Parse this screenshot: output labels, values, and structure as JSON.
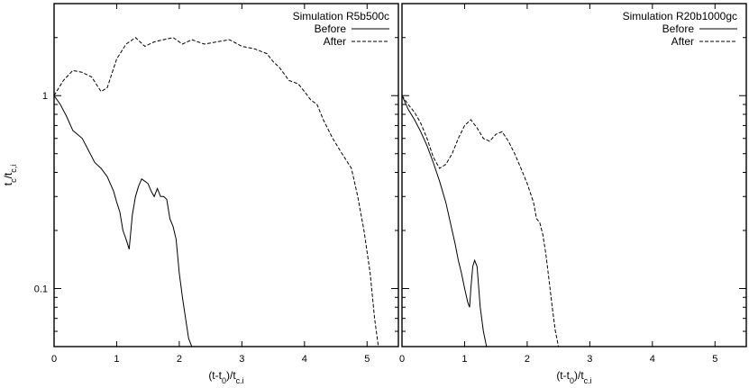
{
  "chart_data": [
    {
      "type": "line",
      "title": "",
      "xlabel": "(t-t0)/tc,i",
      "ylabel": "tc/tc,i",
      "xlim": [
        0,
        5.5
      ],
      "ylim": [
        0.05,
        3
      ],
      "yscale": "log",
      "x_ticks": [
        "0",
        "1",
        "2",
        "3",
        "4",
        "5"
      ],
      "y_ticks": [
        "0.1",
        "1"
      ],
      "legend": {
        "title": "Simulation R5b500c",
        "placement": "top-right",
        "entries": [
          "Before",
          "After"
        ]
      },
      "series": [
        {
          "name": "Before",
          "style": "solid",
          "x": [
            0,
            0.1,
            0.2,
            0.3,
            0.45,
            0.55,
            0.65,
            0.75,
            0.85,
            0.95,
            1.0,
            1.05,
            1.1,
            1.15,
            1.2,
            1.25,
            1.3,
            1.35,
            1.4,
            1.45,
            1.5,
            1.55,
            1.6,
            1.65,
            1.7,
            1.75,
            1.8,
            1.85,
            1.9,
            1.95,
            2.0,
            2.05,
            2.1,
            2.15,
            2.2
          ],
          "y": [
            1.0,
            0.9,
            0.78,
            0.66,
            0.6,
            0.52,
            0.45,
            0.42,
            0.38,
            0.32,
            0.28,
            0.25,
            0.2,
            0.18,
            0.16,
            0.24,
            0.3,
            0.34,
            0.37,
            0.36,
            0.35,
            0.32,
            0.3,
            0.33,
            0.3,
            0.3,
            0.29,
            0.23,
            0.21,
            0.18,
            0.12,
            0.09,
            0.07,
            0.055,
            0.05
          ]
        },
        {
          "name": "After",
          "style": "dashed",
          "x": [
            0,
            0.15,
            0.3,
            0.45,
            0.6,
            0.75,
            0.85,
            1.0,
            1.15,
            1.3,
            1.45,
            1.6,
            1.75,
            1.9,
            2.05,
            2.2,
            2.4,
            2.6,
            2.8,
            3.0,
            3.2,
            3.4,
            3.5,
            3.6,
            3.75,
            3.9,
            4.0,
            4.1,
            4.2,
            4.3,
            4.45,
            4.6,
            4.75,
            4.85,
            4.95,
            5.05,
            5.12,
            5.18
          ],
          "y": [
            1.0,
            1.2,
            1.35,
            1.32,
            1.25,
            1.05,
            1.1,
            1.55,
            1.85,
            2.0,
            1.8,
            1.9,
            1.95,
            2.0,
            1.85,
            1.95,
            1.85,
            1.9,
            1.95,
            1.8,
            1.75,
            1.65,
            1.5,
            1.4,
            1.2,
            1.15,
            1.05,
            0.95,
            0.9,
            0.75,
            0.6,
            0.5,
            0.42,
            0.3,
            0.2,
            0.12,
            0.07,
            0.05
          ]
        }
      ]
    },
    {
      "type": "line",
      "title": "",
      "xlabel": "(t-t0)/tc,i",
      "ylabel": "",
      "xlim": [
        0,
        5.5
      ],
      "ylim": [
        0.05,
        3
      ],
      "yscale": "log",
      "x_ticks": [
        "0",
        "1",
        "2",
        "3",
        "4",
        "5"
      ],
      "y_ticks": [],
      "legend": {
        "title": "Simulation R20b1000gc",
        "placement": "top-right",
        "entries": [
          "Before",
          "After"
        ]
      },
      "series": [
        {
          "name": "Before",
          "style": "solid",
          "x": [
            0,
            0.1,
            0.2,
            0.3,
            0.4,
            0.5,
            0.6,
            0.7,
            0.8,
            0.85,
            0.9,
            0.95,
            1.0,
            1.05,
            1.08,
            1.1,
            1.13,
            1.16,
            1.2,
            1.25,
            1.3,
            1.35
          ],
          "y": [
            1.0,
            0.85,
            0.75,
            0.65,
            0.55,
            0.45,
            0.36,
            0.28,
            0.2,
            0.17,
            0.14,
            0.12,
            0.1,
            0.085,
            0.08,
            0.1,
            0.13,
            0.14,
            0.13,
            0.08,
            0.06,
            0.05
          ]
        },
        {
          "name": "After",
          "style": "dashed",
          "x": [
            0,
            0.1,
            0.2,
            0.3,
            0.4,
            0.5,
            0.6,
            0.7,
            0.8,
            0.9,
            1.0,
            1.1,
            1.2,
            1.3,
            1.4,
            1.5,
            1.6,
            1.7,
            1.8,
            1.9,
            2.0,
            2.1,
            2.15,
            2.2,
            2.25,
            2.3,
            2.35,
            2.4,
            2.45,
            2.5
          ],
          "y": [
            1.0,
            0.9,
            0.82,
            0.72,
            0.6,
            0.48,
            0.42,
            0.44,
            0.5,
            0.6,
            0.7,
            0.75,
            0.68,
            0.6,
            0.58,
            0.63,
            0.65,
            0.58,
            0.5,
            0.42,
            0.35,
            0.28,
            0.23,
            0.22,
            0.19,
            0.15,
            0.11,
            0.08,
            0.06,
            0.05
          ]
        }
      ]
    }
  ]
}
